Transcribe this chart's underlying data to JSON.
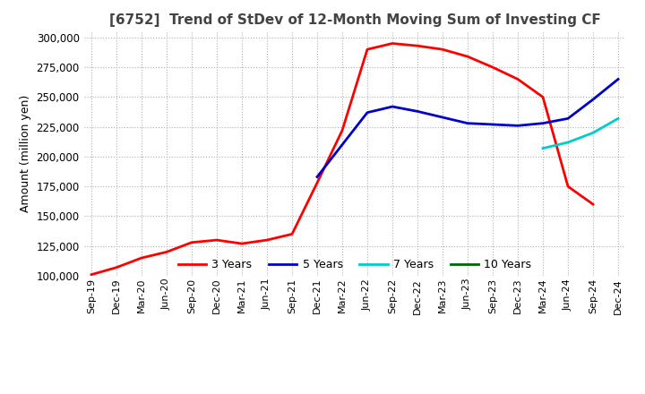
{
  "title": "[6752]  Trend of StDev of 12-Month Moving Sum of Investing CF",
  "ylabel": "Amount (million yen)",
  "background_color": "#ffffff",
  "grid_color": "#b0b0b0",
  "ylim": [
    100000,
    305000
  ],
  "yticks": [
    100000,
    125000,
    150000,
    175000,
    200000,
    225000,
    250000,
    275000,
    300000
  ],
  "x_labels": [
    "Sep-19",
    "Dec-19",
    "Mar-20",
    "Jun-20",
    "Sep-20",
    "Dec-20",
    "Mar-21",
    "Jun-21",
    "Sep-21",
    "Dec-21",
    "Mar-22",
    "Jun-22",
    "Sep-22",
    "Dec-22",
    "Mar-23",
    "Jun-23",
    "Sep-23",
    "Dec-23",
    "Mar-24",
    "Jun-24",
    "Sep-24",
    "Dec-24"
  ],
  "series": {
    "3yr": {
      "color": "#ff0000",
      "label": "3 Years",
      "values": [
        101000,
        107000,
        115000,
        120000,
        128000,
        130000,
        127000,
        130000,
        135000,
        178000,
        222000,
        290000,
        295000,
        293000,
        290000,
        284000,
        275000,
        265000,
        250000,
        175000,
        160000,
        null
      ]
    },
    "5yr": {
      "color": "#0000cc",
      "label": "5 Years",
      "values": [
        null,
        null,
        null,
        null,
        null,
        null,
        null,
        null,
        null,
        183000,
        210000,
        237000,
        242000,
        238000,
        233000,
        228000,
        227000,
        226000,
        228000,
        232000,
        248000,
        265000
      ]
    },
    "7yr": {
      "color": "#00cccc",
      "label": "7 Years",
      "values": [
        null,
        null,
        null,
        null,
        null,
        null,
        null,
        null,
        null,
        null,
        null,
        null,
        null,
        null,
        null,
        null,
        null,
        null,
        207000,
        212000,
        220000,
        232000
      ]
    },
    "10yr": {
      "color": "#006600",
      "label": "10 Years",
      "values": [
        null,
        null,
        null,
        null,
        null,
        null,
        null,
        null,
        null,
        null,
        null,
        null,
        null,
        null,
        null,
        null,
        null,
        null,
        null,
        null,
        null,
        null
      ]
    }
  }
}
